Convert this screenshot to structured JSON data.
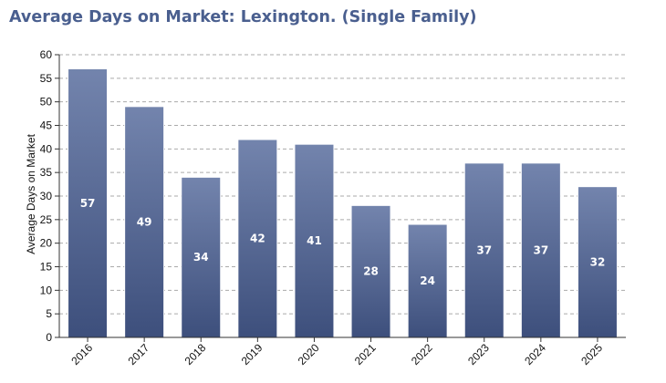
{
  "chart_data": {
    "type": "bar",
    "title": "Average Days on Market: Lexington. (Single Family)",
    "xlabel": "",
    "ylabel": "Average Days on Market",
    "categories": [
      "2016",
      "2017",
      "2018",
      "2019",
      "2020",
      "2021",
      "2022",
      "2023",
      "2024",
      "2025"
    ],
    "values": [
      57,
      49,
      34,
      42,
      41,
      28,
      24,
      37,
      37,
      32
    ],
    "ylim": [
      0,
      60
    ],
    "yticks": [
      0,
      5,
      10,
      15,
      20,
      25,
      30,
      35,
      40,
      45,
      50,
      55,
      60
    ],
    "grid": true,
    "legend": "none",
    "colors": {
      "bar_top": "#7384ad",
      "bar_bottom": "#3d4f7c",
      "title": "#4a5f8f",
      "grid": "#aaaaaa"
    }
  }
}
